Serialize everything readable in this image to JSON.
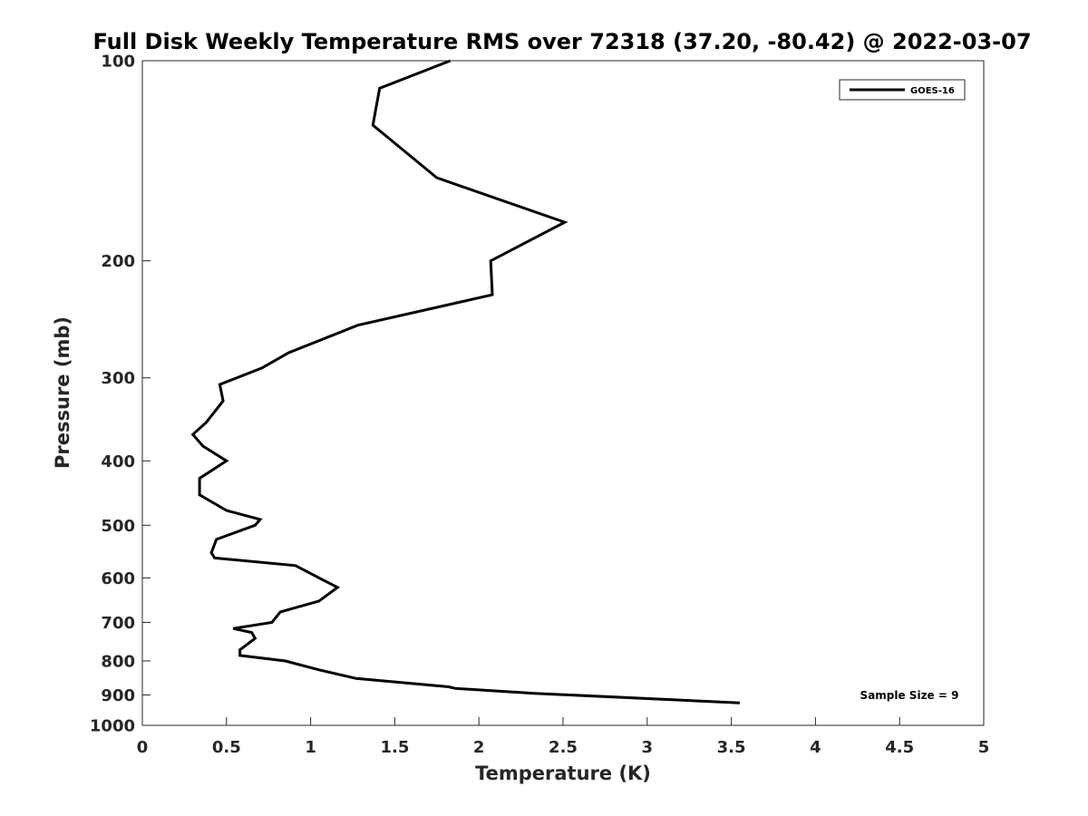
{
  "chart_data": {
    "type": "line",
    "title": "Full Disk Weekly Temperature RMS over 72318 (37.20, -80.42) @ 2022-03-07",
    "xlabel": "Temperature (K)",
    "ylabel": "Pressure (mb)",
    "xlim": [
      0,
      5
    ],
    "ylim": [
      100,
      1000
    ],
    "y_scale": "log",
    "y_reversed": true,
    "x_ticks": [
      0,
      0.5,
      1,
      1.5,
      2,
      2.5,
      3,
      3.5,
      4,
      4.5,
      5
    ],
    "x_tick_labels": [
      "0",
      "0.5",
      "1",
      "1.5",
      "2",
      "2.5",
      "3",
      "3.5",
      "4",
      "4.5",
      "5"
    ],
    "y_ticks": [
      100,
      200,
      300,
      400,
      500,
      600,
      700,
      800,
      900,
      1000
    ],
    "y_tick_labels": [
      "100",
      "200",
      "300",
      "400",
      "500",
      "600",
      "700",
      "800",
      "900",
      "1000"
    ],
    "grid": false,
    "legend_position": "top-right",
    "series": [
      {
        "name": "GOES-16",
        "color": "#000000",
        "x": [
          1.83,
          1.41,
          1.37,
          1.75,
          2.51,
          2.07,
          2.08,
          1.28,
          0.87,
          0.71,
          0.46,
          0.48,
          0.38,
          0.3,
          0.36,
          0.5,
          0.34,
          0.34,
          0.5,
          0.7,
          0.67,
          0.44,
          0.41,
          0.43,
          0.91,
          1.05,
          1.16,
          1.05,
          0.82,
          0.77,
          0.54,
          0.65,
          0.67,
          0.58,
          0.58,
          0.85,
          1.05,
          1.27,
          1.82,
          1.86,
          2.33,
          3.55
        ],
        "y": [
          100,
          110,
          125,
          150,
          175,
          200,
          225,
          250,
          275,
          290,
          307,
          325,
          350,
          365,
          380,
          400,
          425,
          450,
          475,
          490,
          500,
          525,
          550,
          560,
          575,
          600,
          620,
          650,
          675,
          700,
          715,
          725,
          740,
          770,
          785,
          800,
          825,
          850,
          875,
          880,
          895,
          925
        ]
      }
    ],
    "annotation": "Sample Size = 9"
  }
}
